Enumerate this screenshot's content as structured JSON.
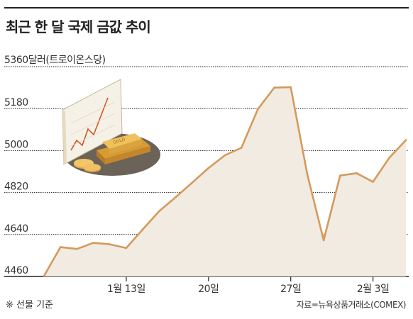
{
  "title": "최근 한 달 국제 금값 추이",
  "unit_label": "5360달러(트로이온스당)",
  "note": "※ 선물 기준",
  "source": "자료=뉴욕상품거래소(COMEX)",
  "colors": {
    "line": "#d49a5c",
    "area": "#f1ebe1",
    "grid": "#222222",
    "text": "#333333"
  },
  "chart_data": {
    "type": "area",
    "title": "최근 한 달 국제 금값 추이",
    "ylabel": "5360달러(트로이온스당)",
    "ylim": [
      4460,
      5360
    ],
    "yticks": [
      4460,
      4640,
      4820,
      5000,
      5180
    ],
    "xtick_labels": [
      {
        "index": 5,
        "label": "1월 13일"
      },
      {
        "index": 10,
        "label": "20일"
      },
      {
        "index": 15,
        "label": "27일"
      },
      {
        "index": 20,
        "label": "2월 3일"
      }
    ],
    "series": [
      {
        "values": [
          4462,
          4586,
          4578,
          4604,
          4598,
          4582,
          4662,
          4740,
          4800,
          4862,
          4925,
          4980,
          5012,
          5178,
          5270,
          5272,
          4900,
          4615,
          4893,
          4903,
          4866,
          4970,
          5045
        ]
      }
    ]
  }
}
